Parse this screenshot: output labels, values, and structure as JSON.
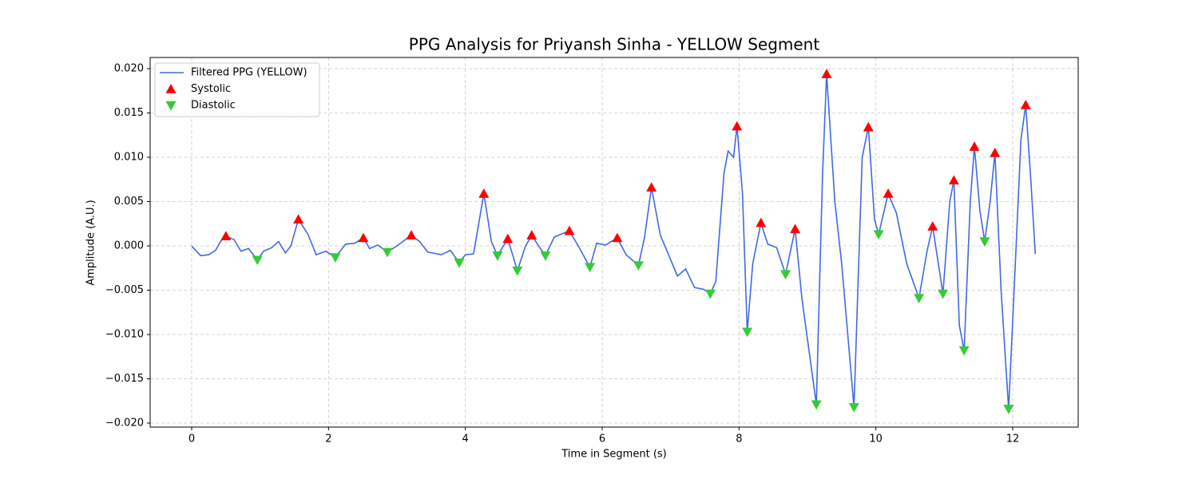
{
  "chart_data": {
    "type": "line",
    "title": "PPG Analysis for Priyansh Sinha - YELLOW Segment",
    "xlabel": "Time in Segment (s)",
    "ylabel": "Amplitude (A.U.)",
    "xlim": [
      -0.607,
      12.957
    ],
    "ylim": [
      -0.02045,
      0.02126
    ],
    "xticks": [
      0,
      2,
      4,
      6,
      8,
      10,
      12
    ],
    "yticks": [
      {
        "value": -0.02,
        "label": "−0.020"
      },
      {
        "value": -0.015,
        "label": "−0.015"
      },
      {
        "value": -0.01,
        "label": "−0.010"
      },
      {
        "value": -0.005,
        "label": "−0.005"
      },
      {
        "value": 0,
        "label": "0.000"
      },
      {
        "value": 0.005,
        "label": "0.005"
      },
      {
        "value": 0.01,
        "label": "0.010"
      },
      {
        "value": 0.015,
        "label": "0.015"
      },
      {
        "value": 0.02,
        "label": "0.020"
      }
    ],
    "grid": true,
    "legend": "upper left",
    "series": [
      {
        "name": "Filtered PPG (YELLOW)",
        "type": "line",
        "color": "#4169e1",
        "x": [
          0.0,
          0.13,
          0.25,
          0.35,
          0.42,
          0.5,
          0.62,
          0.72,
          0.83,
          0.96,
          1.05,
          1.17,
          1.27,
          1.37,
          1.45,
          1.56,
          1.7,
          1.82,
          1.96,
          2.1,
          2.25,
          2.38,
          2.51,
          2.6,
          2.72,
          2.86,
          3.0,
          3.21,
          3.33,
          3.45,
          3.65,
          3.78,
          3.91,
          4.0,
          4.12,
          4.27,
          4.38,
          4.47,
          4.62,
          4.76,
          4.88,
          4.97,
          5.07,
          5.17,
          5.3,
          5.52,
          5.65,
          5.82,
          5.92,
          6.05,
          6.22,
          6.35,
          6.53,
          6.62,
          6.72,
          6.85,
          6.97,
          7.1,
          7.22,
          7.35,
          7.48,
          7.58,
          7.66,
          7.78,
          7.84,
          7.92,
          7.97,
          8.05,
          8.12,
          8.2,
          8.32,
          8.42,
          8.55,
          8.68,
          8.82,
          8.92,
          9.13,
          9.22,
          9.28,
          9.4,
          9.5,
          9.68,
          9.8,
          9.89,
          9.98,
          10.04,
          10.18,
          10.3,
          10.45,
          10.63,
          10.75,
          10.83,
          10.98,
          11.08,
          11.14,
          11.22,
          11.29,
          11.38,
          11.44,
          11.52,
          11.59,
          11.67,
          11.74,
          11.83,
          11.94,
          12.05,
          12.12,
          12.19,
          12.26,
          12.33
        ],
        "values": [
          0.0,
          -0.0011,
          -0.001,
          -0.0005,
          0.0005,
          0.0011,
          0.0007,
          -0.0006,
          -0.0003,
          -0.0016,
          -0.0006,
          -0.0002,
          0.0005,
          -0.0008,
          0.0,
          0.003,
          0.0013,
          -0.001,
          -0.0006,
          -0.0013,
          0.0002,
          0.0003,
          0.0009,
          -0.0003,
          0.0001,
          -0.0007,
          0.0,
          0.0012,
          0.0005,
          -0.0007,
          -0.001,
          -0.0005,
          -0.0019,
          -0.001,
          -0.0009,
          0.0059,
          0.0005,
          -0.0011,
          0.0008,
          -0.0028,
          0.0,
          0.0012,
          0.0,
          -0.0011,
          0.001,
          0.0017,
          0.0,
          -0.0024,
          0.0003,
          0.0001,
          0.0009,
          -0.001,
          -0.0022,
          0.001,
          0.0066,
          0.0012,
          -0.001,
          -0.0034,
          -0.0026,
          -0.0047,
          -0.0049,
          -0.0054,
          -0.004,
          0.0082,
          0.0107,
          0.01,
          0.0135,
          0.006,
          -0.0097,
          -0.002,
          0.0026,
          0.0002,
          -0.0002,
          -0.0032,
          0.0019,
          -0.006,
          -0.0179,
          0.008,
          0.0194,
          0.005,
          -0.002,
          -0.0182,
          0.01,
          0.0134,
          0.003,
          0.0013,
          0.0059,
          0.0037,
          -0.002,
          -0.0059,
          -0.0005,
          0.0022,
          -0.0054,
          0.005,
          0.0074,
          -0.009,
          -0.0118,
          0.005,
          0.0112,
          0.004,
          0.0005,
          0.005,
          0.0105,
          -0.005,
          -0.0184,
          0.0,
          0.012,
          0.0159,
          0.008,
          -0.0009
        ]
      },
      {
        "name": "Systolic",
        "type": "scatter",
        "marker": "up",
        "color": "#ff0000",
        "x": [
          0.5,
          1.56,
          2.51,
          3.21,
          4.27,
          4.62,
          4.97,
          5.52,
          6.22,
          6.72,
          7.97,
          8.32,
          8.82,
          9.28,
          9.89,
          10.18,
          10.83,
          11.14,
          11.44,
          11.74,
          12.19
        ],
        "values": [
          0.0011,
          0.003,
          0.0009,
          0.0012,
          0.0059,
          0.0008,
          0.0012,
          0.0017,
          0.0009,
          0.0066,
          0.0135,
          0.0026,
          0.0019,
          0.0194,
          0.0134,
          0.0059,
          0.0022,
          0.0074,
          0.0112,
          0.0105,
          0.0159
        ]
      },
      {
        "name": "Diastolic",
        "type": "scatter",
        "marker": "down",
        "color": "#32cd32",
        "x": [
          0.96,
          2.1,
          2.86,
          3.91,
          4.47,
          4.76,
          5.17,
          5.82,
          6.53,
          7.58,
          8.12,
          8.68,
          9.13,
          9.68,
          10.04,
          10.63,
          10.98,
          11.29,
          11.59,
          11.94
        ],
        "values": [
          -0.0016,
          -0.0013,
          -0.0007,
          -0.0019,
          -0.0011,
          -0.0028,
          -0.0011,
          -0.0024,
          -0.0022,
          -0.0054,
          -0.0097,
          -0.0032,
          -0.0179,
          -0.0182,
          0.0013,
          -0.0059,
          -0.0054,
          -0.0118,
          0.0005,
          -0.0184
        ]
      }
    ]
  }
}
